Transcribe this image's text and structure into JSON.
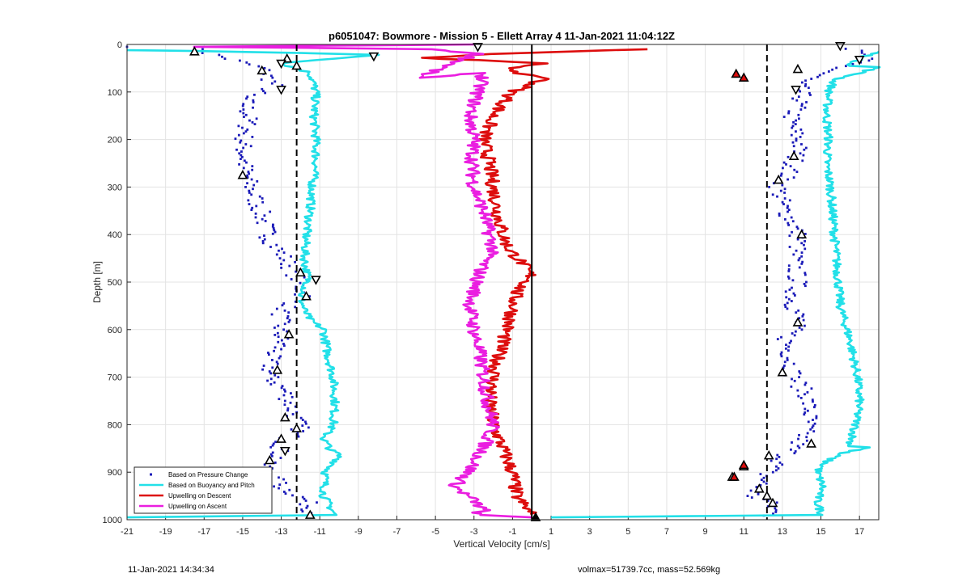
{
  "figure": {
    "footer_left": "11-Jan-2021 14:34:34",
    "footer_right": "volmax=51739.7cc, mass=52.569kg"
  },
  "chart_data": {
    "type": "line",
    "title": "p6051047: Bowmore - Mission 5 - Ellett Array 4 11-Jan-2021 11:04:12Z",
    "xlabel": "Vertical Velocity [cm/s]",
    "ylabel": "Depth [m]",
    "xlim": [
      -21,
      18
    ],
    "ylim": [
      0,
      1000
    ],
    "y_reversed": true,
    "xticks": [
      -21,
      -19,
      -17,
      -15,
      -13,
      -11,
      -9,
      -7,
      -5,
      -3,
      -1,
      1,
      3,
      5,
      7,
      9,
      11,
      13,
      15,
      17
    ],
    "yticks": [
      0,
      100,
      200,
      300,
      400,
      500,
      600,
      700,
      800,
      900,
      1000
    ],
    "grid": true,
    "legend_position": "bottom-left",
    "series": [
      {
        "name": "Based on Pressure Change",
        "style": "dots",
        "color": "#1a1ab8",
        "groups": [
          {
            "x": [
              -20.5,
              -17.5,
              -14.0,
              -13.3,
              -14.9,
              -14.7,
              -15.0,
              -14.9,
              -14.6,
              -14.0,
              -13.6,
              -12.8,
              -12.2,
              -11.8,
              -13.0,
              -13.1,
              -13.0,
              -13.6,
              -13.6,
              -12.8,
              -12.4,
              -12.0,
              -13.0,
              -13.2,
              -13.8,
              -13.7,
              -13.0,
              -11.7,
              -11.3
            ],
            "y": [
              5,
              10,
              50,
              90,
              110,
              160,
              210,
              260,
              300,
              360,
              410,
              450,
              490,
              530,
              560,
              600,
              630,
              660,
              700,
              730,
              770,
              810,
              840,
              870,
              880,
              900,
              930,
              960,
              990
            ]
          },
          {
            "x": [
              16.4,
              17.3,
              13.8,
              14.0,
              13.4,
              13.9,
              13.5,
              12.8,
              13.0,
              13.6,
              13.9,
              13.6,
              13.8,
              13.5,
              13.9,
              13.2,
              13.4,
              13.6,
              14.3,
              14.4,
              14.0,
              13.3,
              12.8,
              12.2,
              12.0,
              11.4,
              12.2,
              12.6,
              12.3
            ],
            "y": [
              5,
              30,
              80,
              110,
              160,
              210,
              260,
              300,
              340,
              380,
              410,
              450,
              500,
              540,
              580,
              620,
              660,
              700,
              740,
              790,
              830,
              860,
              880,
              900,
              920,
              950,
              960,
              980,
              995
            ]
          }
        ]
      },
      {
        "name": "Based on Buoyancy and Pitch",
        "style": "line",
        "color": "#22e0e8",
        "groups": [
          {
            "x": [
              -21.0,
              -17.0,
              -12.0,
              -8.0,
              -13.0,
              -11.5,
              -11.2,
              -11.3,
              -11.2,
              -11.2,
              -11.4,
              -11.5,
              -11.7,
              -11.8,
              -11.6,
              -12.0,
              -11.8,
              -11.5,
              -10.8,
              -10.6,
              -10.3,
              -10.2,
              -10.3,
              -10.8,
              -10.4,
              -10.1,
              -10.0,
              -10.7,
              -10.8,
              -10.2,
              -21.0
            ],
            "y": [
              12,
              14,
              18,
              22,
              40,
              60,
              100,
              150,
              200,
              250,
              300,
              350,
              400,
              450,
              500,
              530,
              560,
              580,
              600,
              650,
              700,
              750,
              800,
              830,
              855,
              860,
              870,
              900,
              950,
              990,
              995
            ]
          },
          {
            "x": [
              18.0,
              17.0,
              16.5,
              18.0,
              15.7,
              15.4,
              15.3,
              15.4,
              15.3,
              15.5,
              15.6,
              15.7,
              15.8,
              15.9,
              16.0,
              16.2,
              16.5,
              16.7,
              16.9,
              17.0,
              16.8,
              16.6,
              16.5,
              17.5,
              16.0,
              15.2,
              14.8,
              15.1,
              14.8,
              15.0,
              15.1,
              1.0
            ],
            "y": [
              15,
              30,
              45,
              48,
              75,
              100,
              150,
              200,
              250,
              300,
              350,
              400,
              450,
              500,
              550,
              580,
              620,
              660,
              700,
              750,
              800,
              830,
              845,
              848,
              860,
              880,
              900,
              930,
              960,
              985,
              990,
              995
            ]
          }
        ]
      },
      {
        "name": "Upwelling on Descent",
        "style": "line",
        "color": "#dd0d0d",
        "groups": [
          {
            "x": [
              6.0,
              -2.0,
              -5.5,
              0.5,
              -1.5,
              0.8,
              -1.0,
              -2.0,
              -2.5,
              -2.2,
              -2.0,
              -1.8,
              -1.5,
              -1.2,
              -0.5,
              0.0,
              -0.8,
              -1.0,
              -1.3,
              -1.7,
              -2.0,
              -2.2,
              -2.0,
              -1.5,
              -1.0,
              -0.8,
              0.0
            ],
            "y": [
              10,
              20,
              28,
              40,
              55,
              70,
              100,
              150,
              200,
              250,
              300,
              350,
              400,
              430,
              460,
              490,
              520,
              560,
              600,
              650,
              700,
              750,
              800,
              850,
              900,
              950,
              990
            ]
          }
        ]
      },
      {
        "name": "Upwelling on Ascent",
        "style": "line",
        "color": "#ea1ee0",
        "groups": [
          {
            "x": [
              -3.0,
              -17.5,
              -5.0,
              -2.8,
              -6.0,
              -2.5,
              -2.8,
              -3.2,
              -3.0,
              -3.1,
              -3.0,
              -2.5,
              -2.2,
              -2.0,
              -2.5,
              -2.8,
              -3.2,
              -3.0,
              -2.7,
              -2.5,
              -2.3,
              -2.0,
              -2.5,
              -3.3,
              -4.0,
              -3.0,
              -2.5,
              -3.0,
              0.0
            ],
            "y": [
              0,
              5,
              10,
              20,
              70,
              60,
              100,
              150,
              200,
              250,
              300,
              350,
              400,
              430,
              460,
              490,
              550,
              600,
              650,
              700,
              750,
              800,
              850,
              900,
              930,
              960,
              980,
              990,
              995
            ]
          }
        ]
      }
    ],
    "reference_lines": [
      {
        "axis": "x",
        "value": -12.2,
        "style": "dashed",
        "color": "#000000"
      },
      {
        "axis": "x",
        "value": 12.2,
        "style": "dashed",
        "color": "#000000"
      },
      {
        "axis": "x",
        "value": 0.0,
        "style": "solid",
        "color": "#000000"
      }
    ],
    "markers": [
      {
        "x": -17.5,
        "y": 15,
        "shape": "triangle-up",
        "fill": "none"
      },
      {
        "x": -8.2,
        "y": 25,
        "shape": "triangle-down",
        "fill": "none"
      },
      {
        "x": -12.7,
        "y": 30,
        "shape": "triangle-up",
        "fill": "none"
      },
      {
        "x": -13.0,
        "y": 40,
        "shape": "triangle-down",
        "fill": "none"
      },
      {
        "x": -12.2,
        "y": 45,
        "shape": "triangle-up",
        "fill": "none"
      },
      {
        "x": -14.0,
        "y": 55,
        "shape": "triangle-up",
        "fill": "none"
      },
      {
        "x": -13.0,
        "y": 95,
        "shape": "triangle-down",
        "fill": "none"
      },
      {
        "x": -15.0,
        "y": 275,
        "shape": "triangle-up",
        "fill": "none"
      },
      {
        "x": -12.0,
        "y": 480,
        "shape": "triangle-up",
        "fill": "none"
      },
      {
        "x": -11.2,
        "y": 495,
        "shape": "triangle-down",
        "fill": "none"
      },
      {
        "x": -11.7,
        "y": 530,
        "shape": "triangle-up",
        "fill": "none"
      },
      {
        "x": -12.6,
        "y": 610,
        "shape": "triangle-up",
        "fill": "none"
      },
      {
        "x": -13.2,
        "y": 685,
        "shape": "triangle-up",
        "fill": "none"
      },
      {
        "x": -12.8,
        "y": 785,
        "shape": "triangle-up",
        "fill": "none"
      },
      {
        "x": -12.2,
        "y": 808,
        "shape": "triangle-up",
        "fill": "none"
      },
      {
        "x": -13.0,
        "y": 830,
        "shape": "triangle-up",
        "fill": "none"
      },
      {
        "x": -12.8,
        "y": 855,
        "shape": "triangle-down",
        "fill": "none"
      },
      {
        "x": -13.6,
        "y": 875,
        "shape": "triangle-up",
        "fill": "none"
      },
      {
        "x": -11.5,
        "y": 990,
        "shape": "triangle-up",
        "fill": "none"
      },
      {
        "x": -2.8,
        "y": 5,
        "shape": "triangle-down",
        "fill": "none"
      },
      {
        "x": 16.0,
        "y": 3,
        "shape": "triangle-down",
        "fill": "none"
      },
      {
        "x": 17.0,
        "y": 32,
        "shape": "triangle-down",
        "fill": "none"
      },
      {
        "x": 13.8,
        "y": 52,
        "shape": "triangle-up",
        "fill": "none"
      },
      {
        "x": 13.7,
        "y": 95,
        "shape": "triangle-down",
        "fill": "none"
      },
      {
        "x": 13.6,
        "y": 235,
        "shape": "triangle-up",
        "fill": "none"
      },
      {
        "x": 12.8,
        "y": 285,
        "shape": "triangle-up",
        "fill": "none"
      },
      {
        "x": 14.0,
        "y": 400,
        "shape": "triangle-up",
        "fill": "none"
      },
      {
        "x": 13.8,
        "y": 585,
        "shape": "triangle-up",
        "fill": "none"
      },
      {
        "x": 13.0,
        "y": 690,
        "shape": "triangle-up",
        "fill": "none"
      },
      {
        "x": 14.5,
        "y": 840,
        "shape": "triangle-up",
        "fill": "none"
      },
      {
        "x": 12.3,
        "y": 865,
        "shape": "triangle-up",
        "fill": "none"
      },
      {
        "x": 11.0,
        "y": 888,
        "shape": "triangle-up",
        "fill": "none"
      },
      {
        "x": 10.4,
        "y": 910,
        "shape": "triangle-up",
        "fill": "none"
      },
      {
        "x": 11.8,
        "y": 935,
        "shape": "triangle-up",
        "fill": "none"
      },
      {
        "x": 12.2,
        "y": 950,
        "shape": "triangle-up",
        "fill": "none"
      },
      {
        "x": 12.5,
        "y": 965,
        "shape": "triangle-up",
        "fill": "none"
      },
      {
        "x": 10.6,
        "y": 62,
        "shape": "triangle-up",
        "fill": "#dd0d0d"
      },
      {
        "x": 11.0,
        "y": 70,
        "shape": "triangle-up",
        "fill": "#dd0d0d"
      },
      {
        "x": 11.0,
        "y": 885,
        "shape": "triangle-up",
        "fill": "#dd0d0d"
      },
      {
        "x": 10.5,
        "y": 910,
        "shape": "triangle-up",
        "fill": "#dd0d0d"
      },
      {
        "x": 0.2,
        "y": 995,
        "shape": "triangle-up",
        "fill": "#000000"
      }
    ]
  }
}
